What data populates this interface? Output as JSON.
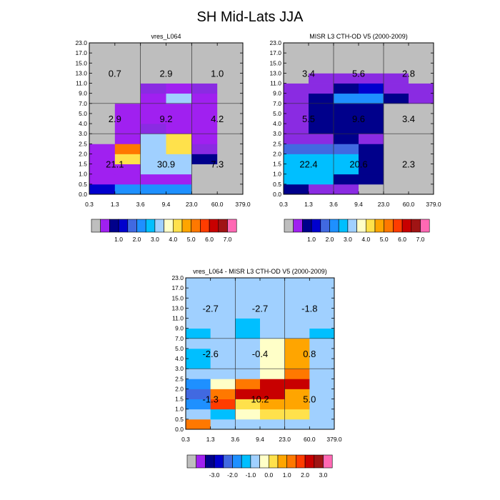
{
  "figure_title": "SH Mid-Lats JJA",
  "chart_data": [
    {
      "type": "heatmap",
      "title": "vres_L064",
      "x_bounds": [
        "0.3",
        "1.3",
        "3.6",
        "9.4",
        "23.0",
        "60.0",
        "379.0"
      ],
      "y_bounds": [
        "0.0",
        "0.5",
        "1.0",
        "1.5",
        "2.0",
        "2.5",
        "3.0",
        "4.0",
        "5.0",
        "7.0",
        "9.0",
        "11.0",
        "13.0",
        "15.0",
        "17.0",
        "23.0"
      ],
      "colors": [
        [
          "c4",
          "c6",
          "c6",
          "c6",
          "c0",
          "c0"
        ],
        [
          "c1",
          "c1",
          "c1",
          "c1",
          "c0",
          "c0"
        ],
        [
          "c1",
          "c1",
          "c8",
          "c8",
          "c0",
          "c0"
        ],
        [
          "c1",
          "c10",
          "c8",
          "c8",
          "c3",
          "c0"
        ],
        [
          "c1",
          "c12",
          "c8",
          "c10",
          "c2",
          "c0"
        ],
        [
          "c0",
          "c1",
          "c8",
          "c10",
          "c1",
          "c0"
        ],
        [
          "c0",
          "c1",
          "c2",
          "c1",
          "c1",
          "c0"
        ],
        [
          "c0",
          "c1",
          "c1",
          "c1",
          "c1",
          "c0"
        ],
        [
          "c0",
          "c1",
          "c1",
          "c1",
          "c1",
          "c0"
        ],
        [
          "c0",
          "c0",
          "c1",
          "c8",
          "c1",
          "c0"
        ],
        [
          "c0",
          "c0",
          "c2",
          "c1",
          "c2",
          "c0"
        ],
        [
          "c0",
          "c0",
          "c0",
          "c0",
          "c0",
          "c0"
        ],
        [
          "c0",
          "c0",
          "c0",
          "c0",
          "c0",
          "c0"
        ],
        [
          "c0",
          "c0",
          "c0",
          "c0",
          "c0",
          "c0"
        ],
        [
          "c0",
          "c0",
          "c0",
          "c0",
          "c0",
          "c0"
        ]
      ],
      "region_labels": [
        "0.7",
        "2.9",
        "1.0",
        "2.9",
        "9.2",
        "4.2",
        "21.1",
        "30.9",
        "7.3"
      ],
      "colorbar": {
        "labels": [
          "1.0",
          "2.0",
          "3.0",
          "4.0",
          "5.0",
          "6.0",
          "7.0"
        ]
      }
    },
    {
      "type": "heatmap",
      "title": "MISR L3 CTH-OD V5 (2000-2009)",
      "x_bounds": [
        "0.3",
        "1.3",
        "3.6",
        "9.4",
        "23.0",
        "60.0",
        "379.0"
      ],
      "y_bounds": [
        "0.0",
        "0.5",
        "1.0",
        "1.5",
        "2.0",
        "2.5",
        "3.0",
        "4.0",
        "5.0",
        "7.0",
        "9.0",
        "11.0",
        "13.0",
        "15.0",
        "17.0",
        "23.0"
      ],
      "colors": [
        [
          "c3",
          "c2",
          "c2",
          "c0",
          "c0",
          "c0"
        ],
        [
          "c7",
          "c7",
          "c3",
          "c3",
          "c0",
          "c0"
        ],
        [
          "c7",
          "c7",
          "c7",
          "c3",
          "c0",
          "c0"
        ],
        [
          "c7",
          "c7",
          "c7",
          "c3",
          "c0",
          "c0"
        ],
        [
          "c5",
          "c5",
          "c5",
          "c3",
          "c0",
          "c0"
        ],
        [
          "c2",
          "c2",
          "c3",
          "c2",
          "c0",
          "c0"
        ],
        [
          "c2",
          "c3",
          "c3",
          "c3",
          "c0",
          "c0"
        ],
        [
          "c2",
          "c3",
          "c3",
          "c3",
          "c0",
          "c0"
        ],
        [
          "c2",
          "c3",
          "c3",
          "c3",
          "c0",
          "c0"
        ],
        [
          "c2",
          "c3",
          "c6",
          "c6",
          "c3",
          "c2"
        ],
        [
          "c2",
          "c2",
          "c3",
          "c4",
          "c2",
          "c2"
        ],
        [
          "c0",
          "c2",
          "c2",
          "c2",
          "c2",
          "c0"
        ],
        [
          "c0",
          "c0",
          "c0",
          "c0",
          "c0",
          "c0"
        ],
        [
          "c0",
          "c0",
          "c0",
          "c0",
          "c0",
          "c0"
        ],
        [
          "c0",
          "c0",
          "c0",
          "c0",
          "c0",
          "c0"
        ]
      ],
      "region_labels": [
        "3.4",
        "5.6",
        "2.8",
        "5.5",
        "9.6",
        "3.4",
        "22.4",
        "20.6",
        "2.3"
      ],
      "colorbar": {
        "labels": [
          "1.0",
          "2.0",
          "3.0",
          "4.0",
          "5.0",
          "6.0",
          "7.0"
        ]
      }
    },
    {
      "type": "heatmap",
      "title": "vres_L064 - MISR L3 CTH-OD V5 (2000-2009)",
      "x_bounds": [
        "0.3",
        "1.3",
        "3.6",
        "9.4",
        "23.0",
        "60.0",
        "379.0"
      ],
      "y_bounds": [
        "0.0",
        "0.5",
        "1.0",
        "1.5",
        "2.0",
        "2.5",
        "3.0",
        "4.0",
        "5.0",
        "7.0",
        "9.0",
        "11.0",
        "13.0",
        "15.0",
        "17.0",
        "23.0"
      ],
      "colors": [
        [
          "c12",
          "c8",
          "c8",
          "c8",
          "c8",
          "c8"
        ],
        [
          "c8",
          "c7",
          "c9",
          "c10",
          "c10",
          "c8"
        ],
        [
          "c6",
          "c13",
          "c10",
          "c11",
          "c11",
          "c8"
        ],
        [
          "c5",
          "c12",
          "c14",
          "c14",
          "c11",
          "c8"
        ],
        [
          "c6",
          "c9",
          "c12",
          "c14",
          "c14",
          "c8"
        ],
        [
          "c8",
          "c8",
          "c8",
          "c9",
          "c12",
          "c8"
        ],
        [
          "c7",
          "c8",
          "c8",
          "c9",
          "c11",
          "c8"
        ],
        [
          "c7",
          "c8",
          "c8",
          "c9",
          "c11",
          "c8"
        ],
        [
          "c8",
          "c8",
          "c8",
          "c9",
          "c11",
          "c8"
        ],
        [
          "c7",
          "c8",
          "c7",
          "c8",
          "c8",
          "c7"
        ],
        [
          "c8",
          "c8",
          "c7",
          "c8",
          "c8",
          "c8"
        ],
        [
          "c8",
          "c8",
          "c8",
          "c8",
          "c8",
          "c8"
        ],
        [
          "c8",
          "c8",
          "c8",
          "c8",
          "c8",
          "c8"
        ],
        [
          "c8",
          "c8",
          "c8",
          "c8",
          "c8",
          "c8"
        ],
        [
          "c8",
          "c8",
          "c8",
          "c8",
          "c8",
          "c8"
        ]
      ],
      "region_labels": [
        "-2.7",
        "-2.7",
        "-1.8",
        "-2.6",
        "-0.4",
        "0.8",
        "-1.3",
        "10.2",
        "5.0"
      ],
      "colorbar": {
        "labels": [
          "-3.0",
          "-2.0",
          "-1.0",
          "0.0",
          "1.0",
          "2.0",
          "3.0"
        ]
      }
    }
  ],
  "palette": {
    "c0": "#bebebe",
    "c1": "#a020f0",
    "c2": "#8a2be2",
    "c3": "#00008b",
    "c4": "#0000cd",
    "c5": "#4169e1",
    "c6": "#1e90ff",
    "c7": "#00bfff",
    "c8": "#a0d0ff",
    "c9": "#ffffc8",
    "c10": "#ffe14b",
    "c11": "#ffa500",
    "c12": "#ff7800",
    "c13": "#ff3c00",
    "c14": "#c80000",
    "c15": "#a01414",
    "c16": "#a52a2a",
    "c17": "#ff69b4"
  },
  "colorbar_swatches": [
    "c0",
    "c1",
    "c3",
    "c4",
    "c5",
    "c6",
    "c7",
    "c8",
    "c9",
    "c10",
    "c11",
    "c12",
    "c13",
    "c14",
    "c15",
    "c17"
  ]
}
